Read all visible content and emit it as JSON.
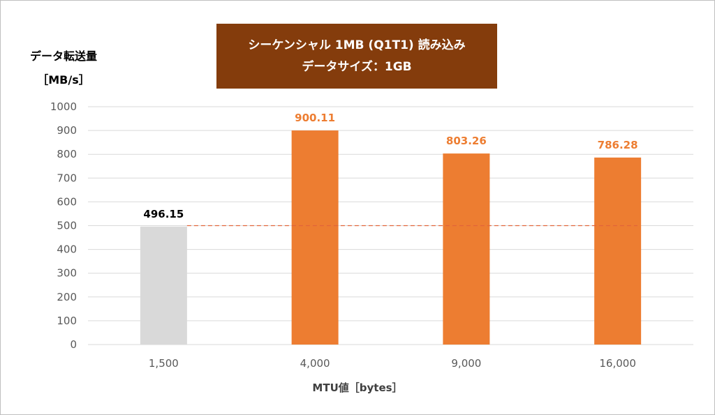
{
  "chart_data": {
    "type": "bar",
    "title": "シーケンシャル 1MB (Q1T1) 読み込み",
    "subtitle": "データサイズ：1GB",
    "ylabel_line1": "データ転送量",
    "ylabel_line2": "［MB/s］",
    "xlabel": "MTU値［bytes］",
    "categories": [
      "1,500",
      "4,000",
      "9,000",
      "16,000"
    ],
    "values": [
      496.15,
      900.11,
      803.26,
      786.28
    ],
    "value_labels": [
      "496.15",
      "900.11",
      "803.26",
      "786.28"
    ],
    "bar_colors": [
      "#d9d9d9",
      "#ed7d31",
      "#ed7d31",
      "#ed7d31"
    ],
    "label_colors": [
      "#000000",
      "#ed7d31",
      "#ed7d31",
      "#ed7d31"
    ],
    "ylim": [
      0,
      1000
    ],
    "yticks": [
      0,
      100,
      200,
      300,
      400,
      500,
      600,
      700,
      800,
      900,
      1000
    ],
    "reference_line": 500,
    "reference_line_color": "#e2643a",
    "grid": true
  },
  "colors": {
    "title_bg": "#843c0c",
    "title_text": "#ffffff",
    "grid": "#d9d9d9"
  }
}
